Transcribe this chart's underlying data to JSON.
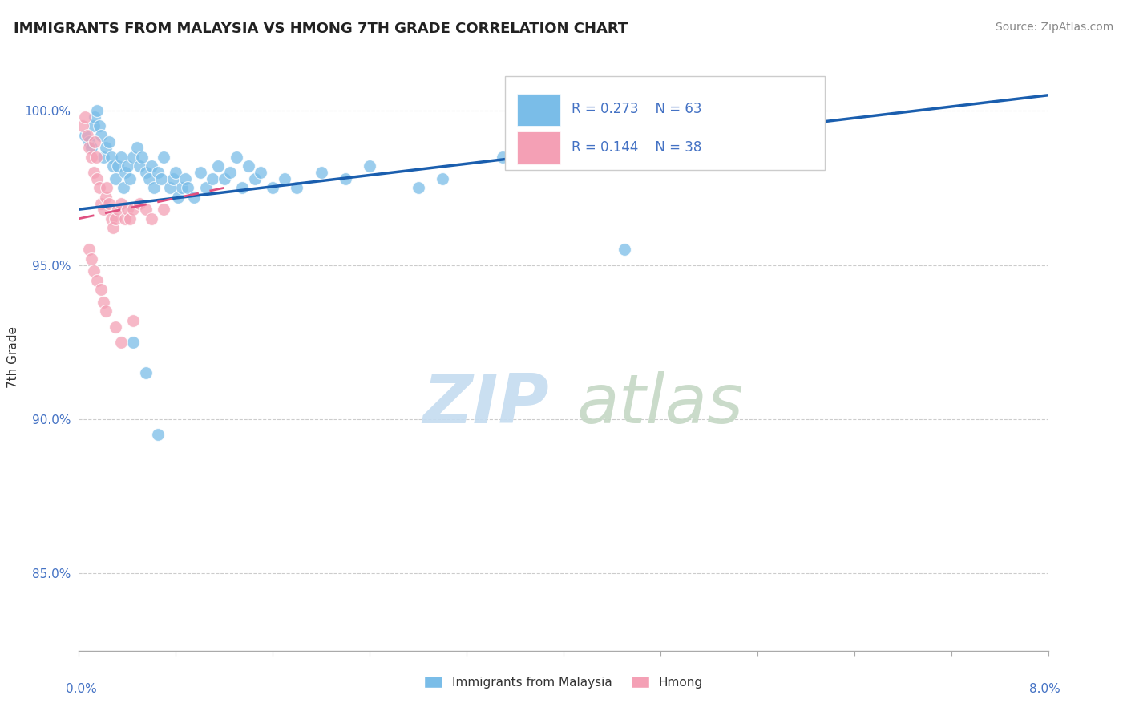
{
  "title": "IMMIGRANTS FROM MALAYSIA VS HMONG 7TH GRADE CORRELATION CHART",
  "source": "Source: ZipAtlas.com",
  "ylabel": "7th Grade",
  "xlim": [
    0.0,
    8.0
  ],
  "ylim": [
    82.5,
    101.5
  ],
  "yticks": [
    85.0,
    90.0,
    95.0,
    100.0
  ],
  "ytick_labels": [
    "85.0%",
    "90.0%",
    "95.0%",
    "100.0%"
  ],
  "legend_R1": "R = 0.273",
  "legend_N1": "N = 63",
  "legend_R2": "R = 0.144",
  "legend_N2": "N = 38",
  "legend_label1": "Immigrants from Malaysia",
  "legend_label2": "Hmong",
  "blue_dot_color": "#7ABDE8",
  "pink_dot_color": "#F4A0B5",
  "blue_line_color": "#1A5EAE",
  "pink_line_color": "#E05080",
  "blue_scatter_x": [
    0.05,
    0.08,
    0.1,
    0.12,
    0.13,
    0.15,
    0.17,
    0.18,
    0.2,
    0.22,
    0.25,
    0.27,
    0.28,
    0.3,
    0.32,
    0.35,
    0.37,
    0.38,
    0.4,
    0.42,
    0.45,
    0.48,
    0.5,
    0.52,
    0.55,
    0.58,
    0.6,
    0.62,
    0.65,
    0.68,
    0.7,
    0.75,
    0.78,
    0.8,
    0.82,
    0.85,
    0.88,
    0.9,
    0.95,
    1.0,
    1.05,
    1.1,
    1.15,
    1.2,
    1.25,
    1.3,
    1.35,
    1.4,
    1.45,
    1.5,
    1.6,
    1.7,
    1.8,
    2.0,
    2.2,
    2.4,
    2.8,
    3.0,
    3.5,
    4.5,
    0.45,
    0.55,
    0.65
  ],
  "blue_scatter_y": [
    99.2,
    99.0,
    98.8,
    99.5,
    99.8,
    100.0,
    99.5,
    99.2,
    98.5,
    98.8,
    99.0,
    98.5,
    98.2,
    97.8,
    98.2,
    98.5,
    97.5,
    98.0,
    98.2,
    97.8,
    98.5,
    98.8,
    98.2,
    98.5,
    98.0,
    97.8,
    98.2,
    97.5,
    98.0,
    97.8,
    98.5,
    97.5,
    97.8,
    98.0,
    97.2,
    97.5,
    97.8,
    97.5,
    97.2,
    98.0,
    97.5,
    97.8,
    98.2,
    97.8,
    98.0,
    98.5,
    97.5,
    98.2,
    97.8,
    98.0,
    97.5,
    97.8,
    97.5,
    98.0,
    97.8,
    98.2,
    97.5,
    97.8,
    98.5,
    95.5,
    92.5,
    91.5,
    89.5
  ],
  "pink_scatter_x": [
    0.03,
    0.05,
    0.07,
    0.08,
    0.1,
    0.12,
    0.13,
    0.14,
    0.15,
    0.17,
    0.18,
    0.2,
    0.22,
    0.23,
    0.25,
    0.27,
    0.28,
    0.3,
    0.32,
    0.35,
    0.38,
    0.4,
    0.42,
    0.45,
    0.5,
    0.55,
    0.6,
    0.7,
    0.08,
    0.1,
    0.12,
    0.15,
    0.18,
    0.2,
    0.22,
    0.3,
    0.35,
    0.45
  ],
  "pink_scatter_y": [
    99.5,
    99.8,
    99.2,
    98.8,
    98.5,
    98.0,
    99.0,
    98.5,
    97.8,
    97.5,
    97.0,
    96.8,
    97.2,
    97.5,
    97.0,
    96.5,
    96.2,
    96.5,
    96.8,
    97.0,
    96.5,
    96.8,
    96.5,
    96.8,
    97.0,
    96.8,
    96.5,
    96.8,
    95.5,
    95.2,
    94.8,
    94.5,
    94.2,
    93.8,
    93.5,
    93.0,
    92.5,
    93.2
  ],
  "blue_trendline_x": [
    0.0,
    8.0
  ],
  "blue_trendline_y": [
    96.8,
    100.5
  ],
  "pink_trendline_x": [
    0.0,
    1.2
  ],
  "pink_trendline_y": [
    96.5,
    97.5
  ]
}
